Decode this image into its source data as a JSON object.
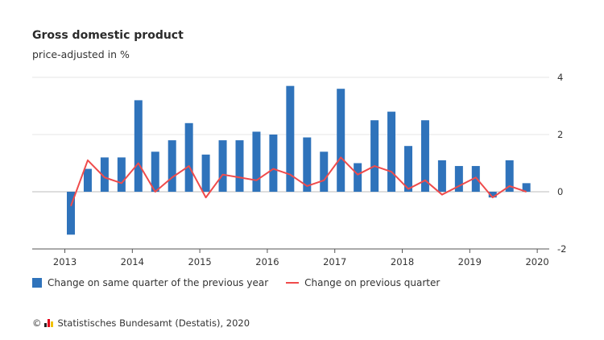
{
  "title": "Gross domestic product",
  "subtitle": "price-adjusted in %",
  "legend": {
    "bar_label": "Change on same quarter of the previous year",
    "line_label": "Change on previous quarter"
  },
  "source": {
    "copyright": "©",
    "text": "Statistisches Bundesamt (Destatis), 2020"
  },
  "colors": {
    "bar": "#2f73bb",
    "line": "#ef4b4b",
    "grid": "#e6e6e6",
    "axis": "#555555"
  },
  "chart_data": {
    "type": "bar",
    "title": "Gross domestic product",
    "subtitle": "price-adjusted in %",
    "quarters": [
      "2013-Q1",
      "2013-Q2",
      "2013-Q3",
      "2013-Q4",
      "2014-Q1",
      "2014-Q2",
      "2014-Q3",
      "2014-Q4",
      "2015-Q1",
      "2015-Q2",
      "2015-Q3",
      "2015-Q4",
      "2016-Q1",
      "2016-Q2",
      "2016-Q3",
      "2016-Q4",
      "2017-Q1",
      "2017-Q2",
      "2017-Q3",
      "2017-Q4",
      "2018-Q1",
      "2018-Q2",
      "2018-Q3",
      "2018-Q4",
      "2019-Q1",
      "2019-Q2",
      "2019-Q3",
      "2019-Q4"
    ],
    "x_ticks": [
      "2013",
      "2014",
      "2015",
      "2016",
      "2017",
      "2018",
      "2019",
      "2020"
    ],
    "y_ticks": [
      4,
      2,
      0,
      -2
    ],
    "ylim": [
      -2,
      4
    ],
    "grid": true,
    "legend_position": "bottom-left",
    "series": [
      {
        "name": "Change on same quarter of the previous year",
        "type": "bar",
        "values": [
          -1.5,
          0.8,
          1.2,
          1.2,
          3.2,
          1.4,
          1.8,
          2.4,
          1.3,
          1.8,
          1.8,
          2.1,
          2.0,
          3.7,
          1.9,
          1.4,
          3.6,
          1.0,
          2.5,
          2.8,
          1.6,
          2.5,
          1.1,
          0.9,
          0.9,
          -0.2,
          1.1,
          0.3
        ]
      },
      {
        "name": "Change on previous quarter",
        "type": "line",
        "values": [
          -0.5,
          1.1,
          0.5,
          0.3,
          1.0,
          0.0,
          0.5,
          0.9,
          -0.2,
          0.6,
          0.5,
          0.4,
          0.8,
          0.6,
          0.2,
          0.4,
          1.2,
          0.6,
          0.9,
          0.7,
          0.1,
          0.4,
          -0.1,
          0.2,
          0.5,
          -0.2,
          0.2,
          0.0
        ]
      }
    ]
  }
}
